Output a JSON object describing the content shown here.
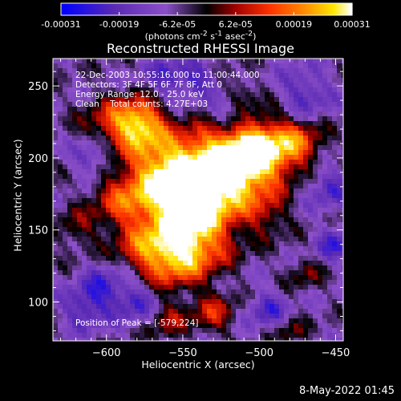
{
  "chart_data": {
    "type": "heatmap",
    "title": "Reconstructed RHESSI Image",
    "xlabel": "Heliocentric X (arcsec)",
    "ylabel": "Heliocentric Y (arcsec)",
    "xlim": [
      -635,
      -445
    ],
    "ylim": [
      73,
      269
    ],
    "x_ticks": [
      -600,
      -550,
      -500,
      -450
    ],
    "y_ticks": [
      100,
      150,
      200,
      250
    ],
    "colorbar": {
      "range": [
        -0.00031,
        0.00031
      ],
      "ticks": [
        "-0.00031",
        "-0.00019",
        "-6.2e-05",
        "6.2e-05",
        "0.00019",
        "0.00031"
      ],
      "unit": "(photons cm-2 s-1 asec-2)",
      "colormap": [
        "#0000ff",
        "#5a2ab4",
        "#8c50c8",
        "#000000",
        "#a00000",
        "#ff3200",
        "#ff8c00",
        "#ffe600",
        "#ffffff"
      ]
    },
    "annotations": [
      "22-Dec-2003 10:55:16.000 to 11:00:44.000",
      "Detectors: 3F 4F 5F 6F 7F 8F, Att 0",
      "Energy Range: 12.0 - 25.0 keV",
      "Clean",
      "Total counts: 4.27E+03"
    ],
    "peak_label": "Position of Peak = [-579,224]",
    "peak": [
      -579,
      224
    ],
    "grid": false
  },
  "timestamp": "8-May-2022 01:45"
}
